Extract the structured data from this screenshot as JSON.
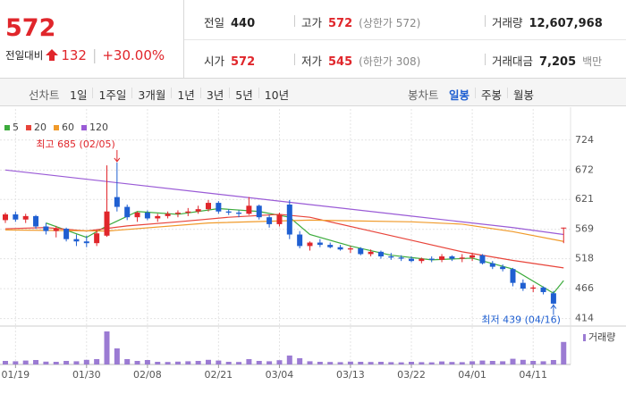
{
  "header": {
    "price": "572",
    "change_label": "전일대비",
    "change": "132",
    "change_pct": "+30.00%",
    "stats": [
      [
        {
          "label": "전일",
          "value": "440",
          "color": "#222"
        },
        {
          "label": "고가",
          "value": "572",
          "note": "(상한가 572)",
          "color": "#e0262b"
        },
        {
          "label": "거래량",
          "value": "12,607,968",
          "color": "#222"
        }
      ],
      [
        {
          "label": "시가",
          "value": "572",
          "color": "#e0262b"
        },
        {
          "label": "저가",
          "value": "545",
          "note": "(하한가 308)",
          "color": "#e0262b"
        },
        {
          "label": "거래대금",
          "value": "7,205",
          "note": "백만",
          "color": "#222"
        }
      ]
    ]
  },
  "toolbar": {
    "line_chart": "선차트",
    "periods": [
      "1일",
      "1주일",
      "3개월",
      "1년",
      "3년",
      "5년",
      "10년"
    ],
    "candle_chart": "봉차트",
    "candle_periods": [
      "일봉",
      "주봉",
      "월봉"
    ],
    "selected": 0
  },
  "chart_data": {
    "type": "candlestick",
    "categories": [
      null,
      "01/19",
      null,
      null,
      null,
      null,
      null,
      null,
      "01/30",
      null,
      null,
      null,
      null,
      null,
      "02/08",
      null,
      null,
      null,
      null,
      null,
      null,
      "02/21",
      null,
      null,
      null,
      null,
      null,
      "03/04",
      null,
      null,
      null,
      null,
      null,
      null,
      "03/13",
      null,
      null,
      null,
      null,
      null,
      "03/22",
      null,
      null,
      null,
      null,
      null,
      "04/01",
      null,
      null,
      null,
      null,
      null,
      "04/11",
      null,
      null,
      null
    ],
    "open": [
      585,
      595,
      586,
      592,
      574,
      566,
      570,
      552,
      548,
      545,
      558,
      625,
      608,
      590,
      598,
      588,
      592,
      596,
      598,
      600,
      604,
      615,
      600,
      598,
      596,
      610,
      590,
      578,
      612,
      560,
      540,
      546,
      542,
      538,
      534,
      536,
      526,
      530,
      522,
      520,
      518,
      514,
      518,
      516,
      522,
      518,
      520,
      524,
      510,
      504,
      500,
      476,
      466,
      468,
      458,
      572
    ],
    "high": [
      598,
      600,
      596,
      594,
      580,
      575,
      572,
      560,
      558,
      568,
      680,
      685,
      612,
      600,
      602,
      596,
      600,
      602,
      606,
      610,
      620,
      618,
      604,
      602,
      625,
      612,
      594,
      598,
      620,
      566,
      548,
      552,
      546,
      542,
      540,
      538,
      534,
      532,
      528,
      524,
      522,
      520,
      522,
      526,
      524,
      526,
      528,
      526,
      514,
      508,
      502,
      482,
      472,
      470,
      462,
      572
    ],
    "low": [
      580,
      582,
      580,
      570,
      560,
      555,
      548,
      540,
      538,
      540,
      556,
      600,
      585,
      582,
      585,
      582,
      588,
      590,
      592,
      596,
      600,
      596,
      594,
      590,
      594,
      586,
      572,
      574,
      552,
      536,
      532,
      538,
      536,
      532,
      528,
      524,
      522,
      518,
      516,
      514,
      512,
      510,
      512,
      512,
      514,
      512,
      514,
      508,
      500,
      496,
      470,
      462,
      460,
      456,
      439,
      545
    ],
    "close": [
      595,
      586,
      592,
      574,
      566,
      570,
      552,
      548,
      545,
      562,
      600,
      608,
      590,
      598,
      588,
      592,
      596,
      598,
      600,
      604,
      615,
      600,
      598,
      596,
      610,
      590,
      578,
      594,
      560,
      540,
      546,
      542,
      538,
      534,
      536,
      526,
      530,
      522,
      520,
      518,
      514,
      518,
      516,
      522,
      518,
      520,
      524,
      510,
      504,
      500,
      476,
      466,
      468,
      460,
      440,
      572
    ],
    "up_color": "#e0262b",
    "down_color": "#1f5fd1",
    "ylim": [
      401,
      778
    ],
    "yticks": [
      724,
      672,
      621,
      569,
      518,
      466,
      414
    ],
    "moving_averages": [
      {
        "name": "5",
        "color": "#3cab3c",
        "x": [
          4,
          8,
          10,
          13,
          17,
          21,
          25,
          28,
          30,
          34,
          38,
          42,
          46,
          50,
          54,
          55
        ],
        "values": [
          580,
          555,
          575,
          600,
          595,
          605,
          600,
          590,
          560,
          540,
          524,
          516,
          519,
          500,
          458,
          480
        ]
      },
      {
        "name": "20",
        "color": "#e8443a",
        "x": [
          0,
          4,
          8,
          12,
          17,
          22,
          27,
          30,
          35,
          40,
          45,
          50,
          55
        ],
        "values": [
          570,
          572,
          566,
          575,
          582,
          590,
          595,
          590,
          570,
          550,
          530,
          515,
          502
        ]
      },
      {
        "name": "60",
        "color": "#f09a2a",
        "x": [
          0,
          10,
          20,
          30,
          40,
          45,
          50,
          55
        ],
        "values": [
          568,
          566,
          580,
          585,
          582,
          578,
          565,
          548
        ]
      },
      {
        "name": "120",
        "color": "#9a5bd6",
        "x": [
          0,
          10,
          20,
          30,
          40,
          50,
          55
        ],
        "values": [
          672,
          652,
          632,
          612,
          592,
          572,
          560
        ]
      }
    ],
    "volume_label": "거래량",
    "volume_color": "#9b7bd3",
    "vlim": [
      0,
      20000000
    ],
    "volume": [
      2000000,
      1800000,
      2200000,
      2500000,
      1600000,
      1500000,
      2000000,
      1800000,
      2600000,
      3000000,
      18500000,
      9000000,
      3000000,
      2000000,
      2500000,
      1500000,
      1400000,
      1600000,
      1800000,
      2000000,
      2600000,
      2200000,
      1500000,
      1400000,
      3000000,
      2000000,
      1800000,
      2400000,
      5000000,
      3500000,
      1800000,
      1500000,
      1400000,
      1300000,
      1600000,
      1500000,
      1400000,
      1500000,
      1300000,
      1200000,
      1500000,
      1300000,
      1200000,
      1700000,
      1400000,
      1300000,
      1800000,
      2200000,
      2000000,
      1800000,
      3200000,
      2600000,
      2000000,
      1800000,
      2500000,
      12607968
    ],
    "annotations": [
      {
        "text": "최고 685 (02/05)",
        "index": 11,
        "value": 685,
        "color": "#e0262b"
      },
      {
        "text": "최저 439 (04/16)",
        "index": 54,
        "value": 439,
        "color": "#1f5fd1"
      }
    ],
    "grid": true
  }
}
